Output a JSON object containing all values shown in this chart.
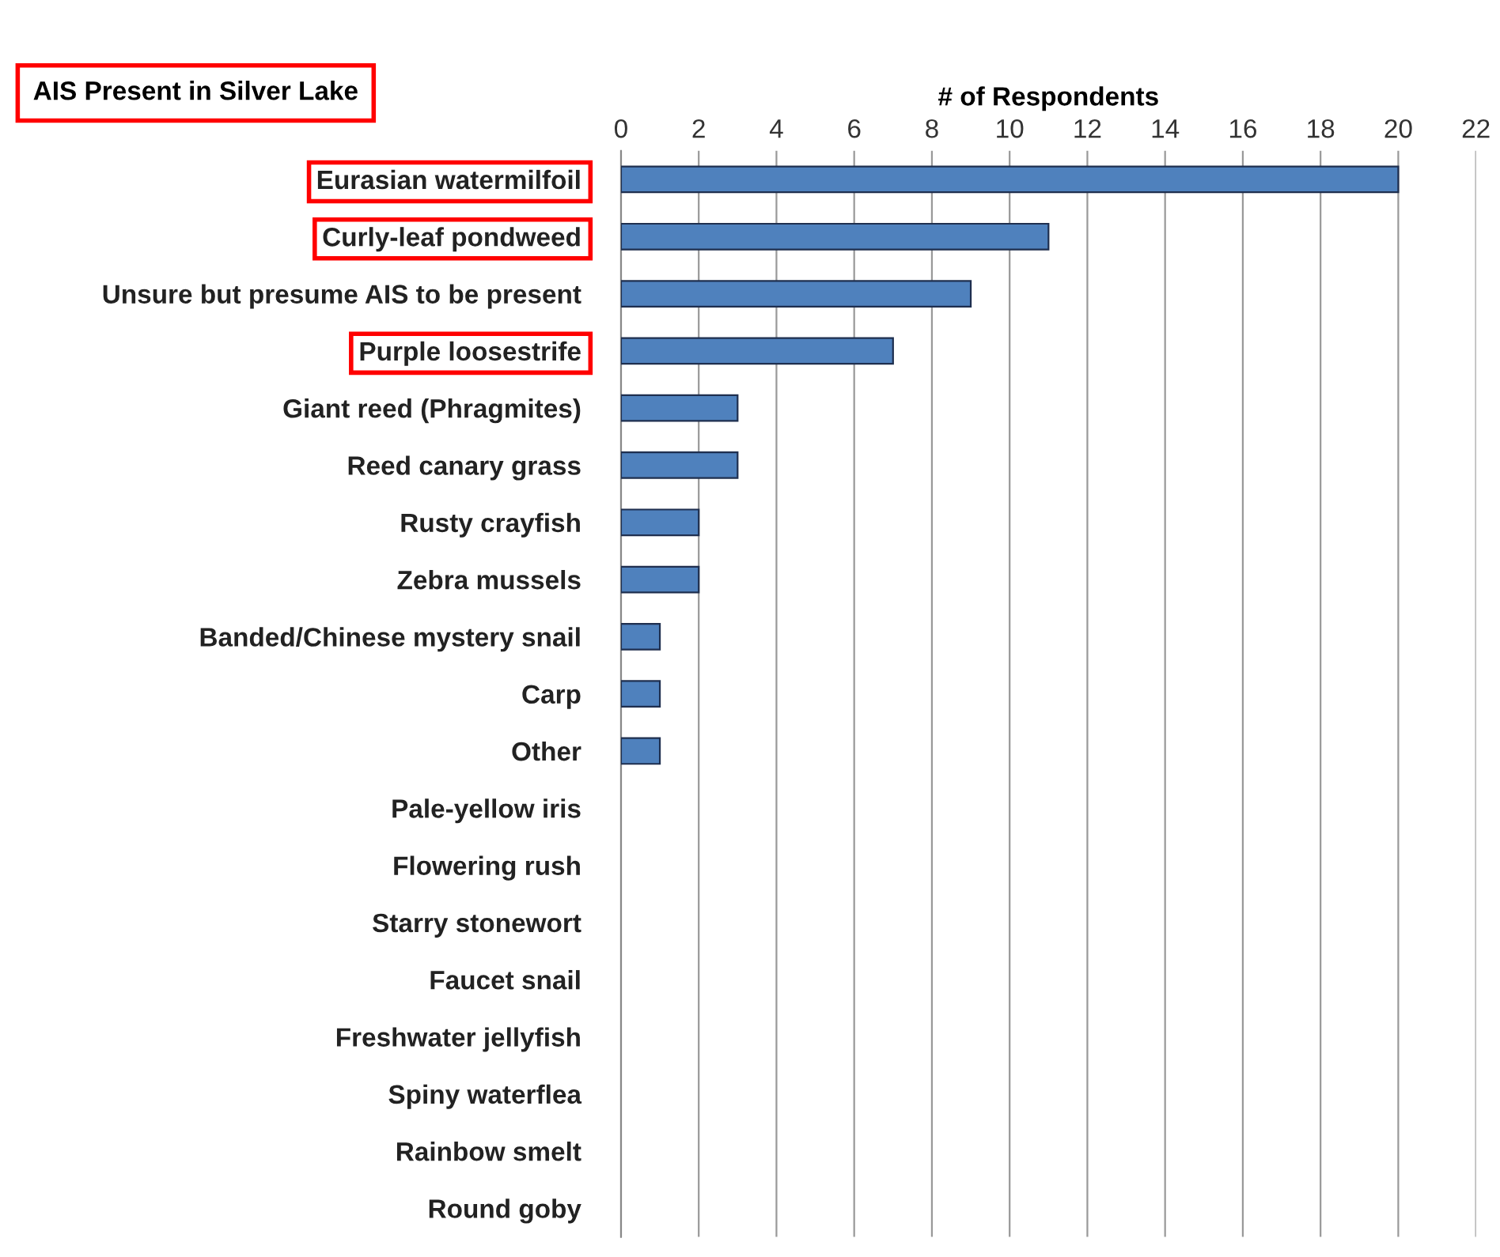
{
  "chart_data": {
    "type": "bar",
    "orientation": "horizontal",
    "title": "AIS Present in Silver Lake",
    "xlabel": "# of Respondents",
    "categories": [
      "Eurasian watermilfoil",
      "Curly-leaf pondweed",
      "Unsure but presume AIS to be present",
      "Purple loosestrife",
      "Giant reed (Phragmites)",
      "Reed canary grass",
      "Rusty crayfish",
      "Zebra mussels",
      "Banded/Chinese mystery snail",
      "Carp",
      "Other",
      "Pale-yellow iris",
      "Flowering rush",
      "Starry stonewort",
      "Faucet snail",
      "Freshwater jellyfish",
      "Spiny waterflea",
      "Rainbow smelt",
      "Round goby"
    ],
    "values": [
      20,
      11,
      9,
      7,
      3,
      3,
      2,
      2,
      1,
      1,
      1,
      0,
      0,
      0,
      0,
      0,
      0,
      0,
      0
    ],
    "color": "#4f81bd",
    "xlim": [
      0,
      22
    ],
    "xticks": [
      0,
      2,
      4,
      6,
      8,
      10,
      12,
      14,
      16,
      18,
      20,
      22
    ],
    "grid": "x"
  }
}
